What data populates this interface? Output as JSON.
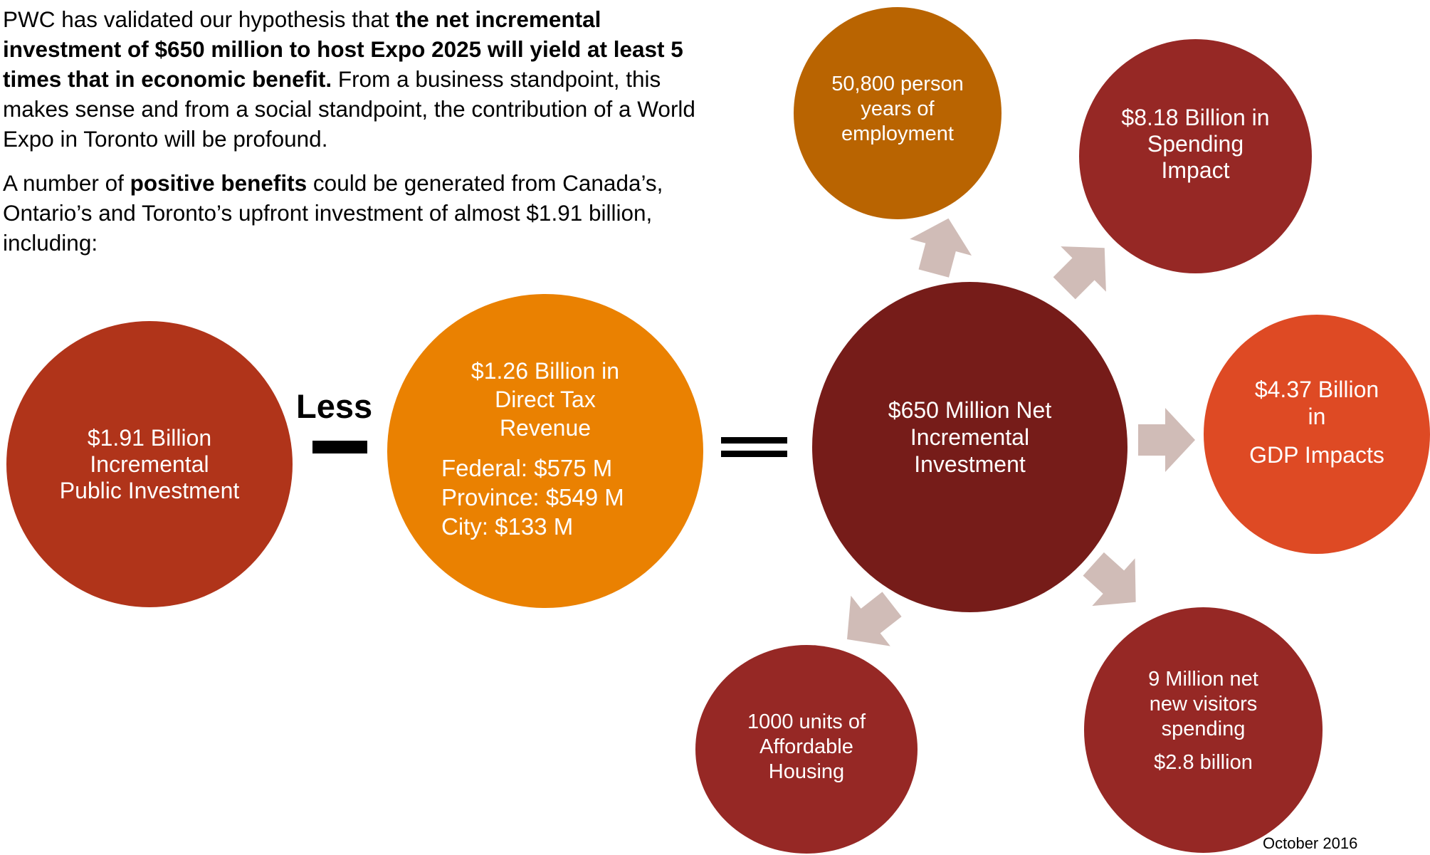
{
  "intro": {
    "p1_start": "PWC has validated our hypothesis that ",
    "p1_bold": "the net incremental investment of $650 million to host Expo 2025 will yield at least 5 times that in economic benefit.",
    "p1_end": " From a business standpoint, this makes sense and from a social standpoint, the contribution of a World Expo in Toronto will be profound.",
    "p2_start": "A number of ",
    "p2_bold": "positive benefits",
    "p2_end": " could be generated from Canada’s, Ontario’s and Toronto’s upfront investment of almost $1.91 billion, including:"
  },
  "equation": {
    "public_investment": "$1.91 Billion\nIncremental\nPublic Investment",
    "less_label": "Less",
    "tax_revenue": {
      "title": "$1.26 Billion in\nDirect Tax\nRevenue",
      "federal": "Federal: $575 M",
      "province": "Province: $549 M",
      "city": "City: $133 M"
    },
    "net_investment": "$650 Million Net\nIncremental\nInvestment"
  },
  "benefits": {
    "employment": "50,800 person\nyears of\nemployment",
    "spending": "$8.18 Billion in\nSpending\nImpact",
    "gdp_line1": "$4.37 Billion\nin",
    "gdp_line2": "GDP Impacts",
    "housing": "1000 units of\nAffordable\nHousing",
    "visitors_line1": "9 Million net\nnew visitors\nspending",
    "visitors_line2": "$2.8 billion"
  },
  "footer": {
    "date": "October 2016"
  },
  "colors": {
    "public_investment": "#B0341A",
    "tax_revenue": "#EA8101",
    "net_investment": "#761C19",
    "employment": "#B96401",
    "spending": "#962825",
    "gdp": "#DE4A24",
    "housing": "#962825",
    "visitors": "#962825",
    "arrow": "#D0BCB7"
  }
}
